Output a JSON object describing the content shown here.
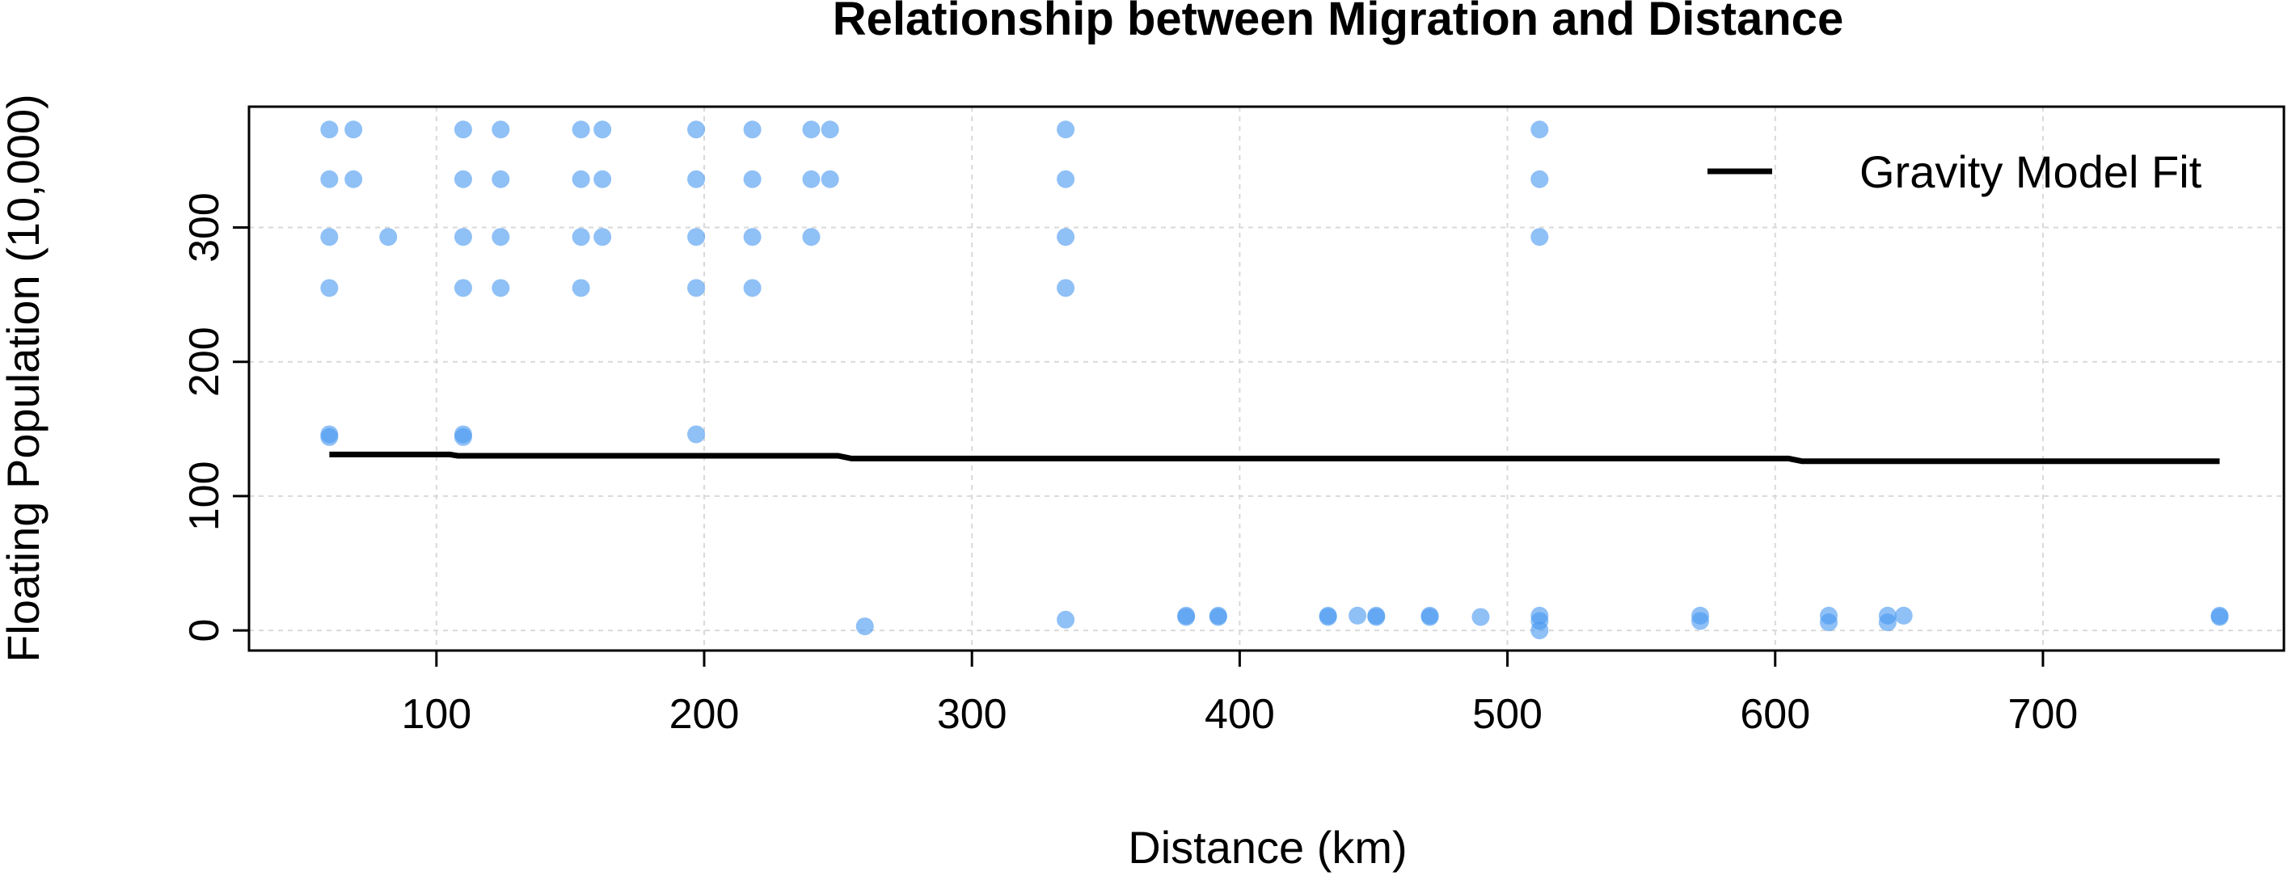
{
  "chart_data": {
    "type": "scatter",
    "title": "Relationship between Migration and Distance",
    "xlabel": "Distance (km)",
    "ylabel": "Floating Population (10,000)",
    "xlim": [
      30,
      790
    ],
    "ylim": [
      -15,
      390
    ],
    "xticks": [
      100,
      200,
      300,
      400,
      500,
      600,
      700
    ],
    "yticks": [
      0,
      100,
      200,
      300
    ],
    "grid": true,
    "legend": {
      "position": "top-right",
      "entries": [
        {
          "label": "Gravity Model Fit",
          "style": "line",
          "color": "#000000"
        }
      ]
    },
    "series": [
      {
        "type": "scatter",
        "color": "#4a9af0",
        "points": [
          [
            60,
            373
          ],
          [
            60,
            336
          ],
          [
            60,
            293
          ],
          [
            60,
            255
          ],
          [
            60,
            146
          ],
          [
            60,
            144
          ],
          [
            69,
            373
          ],
          [
            69,
            336
          ],
          [
            82,
            293
          ],
          [
            110,
            373
          ],
          [
            110,
            336
          ],
          [
            110,
            293
          ],
          [
            110,
            255
          ],
          [
            110,
            146
          ],
          [
            110,
            144
          ],
          [
            124,
            373
          ],
          [
            124,
            336
          ],
          [
            124,
            293
          ],
          [
            124,
            255
          ],
          [
            154,
            373
          ],
          [
            154,
            336
          ],
          [
            154,
            293
          ],
          [
            154,
            255
          ],
          [
            162,
            373
          ],
          [
            162,
            336
          ],
          [
            162,
            293
          ],
          [
            197,
            373
          ],
          [
            197,
            336
          ],
          [
            197,
            293
          ],
          [
            197,
            255
          ],
          [
            197,
            146
          ],
          [
            218,
            373
          ],
          [
            218,
            336
          ],
          [
            218,
            293
          ],
          [
            218,
            255
          ],
          [
            240,
            373
          ],
          [
            240,
            336
          ],
          [
            240,
            293
          ],
          [
            247,
            373
          ],
          [
            247,
            336
          ],
          [
            260,
            3
          ],
          [
            335,
            373
          ],
          [
            335,
            336
          ],
          [
            335,
            293
          ],
          [
            335,
            255
          ],
          [
            335,
            8
          ],
          [
            380,
            11
          ],
          [
            380,
            10
          ],
          [
            392,
            11
          ],
          [
            392,
            10
          ],
          [
            433,
            11
          ],
          [
            433,
            10
          ],
          [
            444,
            11
          ],
          [
            451,
            11
          ],
          [
            451,
            10
          ],
          [
            471,
            11
          ],
          [
            471,
            10
          ],
          [
            490,
            10
          ],
          [
            512,
            373
          ],
          [
            512,
            336
          ],
          [
            512,
            293
          ],
          [
            512,
            11
          ],
          [
            512,
            7
          ],
          [
            512,
            0
          ],
          [
            572,
            11
          ],
          [
            572,
            7
          ],
          [
            620,
            11
          ],
          [
            620,
            6
          ],
          [
            642,
            11
          ],
          [
            642,
            6
          ],
          [
            648,
            11
          ],
          [
            766,
            11
          ],
          [
            766,
            10
          ]
        ]
      },
      {
        "type": "line",
        "name": "Gravity Model Fit",
        "color": "#000000",
        "points": [
          [
            60,
            131
          ],
          [
            105,
            131
          ],
          [
            108,
            130
          ],
          [
            250,
            130
          ],
          [
            255,
            128
          ],
          [
            605,
            128
          ],
          [
            610,
            126
          ],
          [
            766,
            126
          ]
        ]
      }
    ]
  }
}
